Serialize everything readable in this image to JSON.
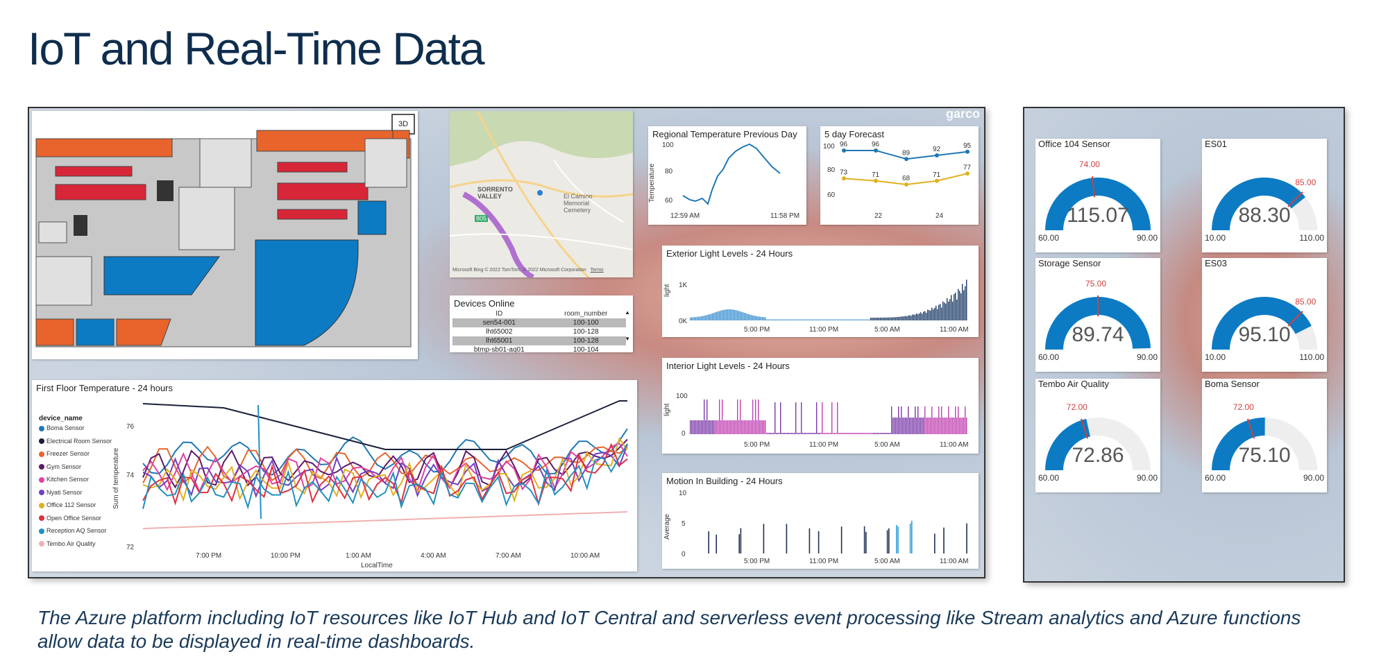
{
  "slide": {
    "title": "IoT and Real-Time Data",
    "caption": "The Azure platform including IoT resources like IoT Hub and IoT Central and serverless event processing like Stream analytics and Azure functions allow data to be displayed in real-time dashboards."
  },
  "dashboard": {
    "watermark": "garco",
    "floor_plan": {
      "button_3d": "3D"
    },
    "map": {
      "labels": [
        "SORRENTO VALLEY",
        "El Camino Memorial Cemetery",
        "805"
      ],
      "attribution": "Microsoft Bing  © 2022 TomTom, © 2022 Microsoft Corporation",
      "terms": "Terms"
    },
    "devices_online": {
      "title": "Devices Online",
      "columns": [
        "ID",
        "room_number"
      ],
      "rows": [
        {
          "id": "sen54-001",
          "room": "100-100"
        },
        {
          "id": "lht65002",
          "room": "100-128"
        },
        {
          "id": "lht65001",
          "room": "100-128"
        },
        {
          "id": "btmp-sb01-aq01",
          "room": "100-104"
        }
      ]
    },
    "regional_temp": {
      "title": "Regional Temperature Previous Day",
      "ylabel": "Temperature",
      "yticks": [
        "100",
        "80",
        "60"
      ],
      "xticks": [
        "12:59 AM",
        "11:58 PM"
      ]
    },
    "forecast": {
      "title": "5 day Forecast",
      "yticks": [
        "100",
        "80",
        "60"
      ],
      "xticks": [
        "22",
        "24"
      ],
      "high": [
        96,
        96,
        89,
        92,
        95
      ],
      "low": [
        73,
        71,
        68,
        71,
        77
      ]
    },
    "exterior_light": {
      "title": "Exterior Light Levels - 24 Hours",
      "ylabel": "light",
      "yticks": [
        "1K",
        "0K"
      ],
      "xticks": [
        "5:00 PM",
        "11:00 PM",
        "5:00 AM",
        "11:00 AM"
      ]
    },
    "interior_light": {
      "title": "Interior Light Levels - 24 Hours",
      "ylabel": "light",
      "yticks": [
        "100",
        "0"
      ],
      "xticks": [
        "5:00 PM",
        "11:00 PM",
        "5:00 AM",
        "11:00 AM"
      ]
    },
    "motion": {
      "title": "Motion In Building - 24 Hours",
      "ylabel": "Average",
      "yticks": [
        "10",
        "5",
        "0"
      ],
      "xticks": [
        "5:00 PM",
        "11:00 PM",
        "5:00 AM",
        "11:00 AM"
      ]
    },
    "first_floor": {
      "title": "First Floor Temperature - 24 hours",
      "legend_title": "device_name",
      "ylabel": "Sum of temperature",
      "xlabel": "LocalTime",
      "yticks": [
        "76",
        "74",
        "72"
      ],
      "xticks": [
        "7:00 PM",
        "10:00 PM",
        "1:00 AM",
        "4:00 AM",
        "7:00 AM",
        "10:00 AM"
      ],
      "series": [
        {
          "name": "Boma Sensor",
          "color": "#1f77b4"
        },
        {
          "name": "Electrical Room Sensor",
          "color": "#1a1f3a"
        },
        {
          "name": "Freezer Sensor",
          "color": "#e8642c"
        },
        {
          "name": "Gym Sensor",
          "color": "#5a1a6a"
        },
        {
          "name": "Kitchen Sensor",
          "color": "#e040a0"
        },
        {
          "name": "Nyati Sensor",
          "color": "#7040c0"
        },
        {
          "name": "Office 112 Sensor",
          "color": "#e0b020"
        },
        {
          "name": "Open Office Sensor",
          "color": "#e03040"
        },
        {
          "name": "Reception AQ Sensor",
          "color": "#2090c0"
        },
        {
          "name": "Tembo Air Quality",
          "color": "#f0b0b0"
        }
      ]
    }
  },
  "gauges": [
    {
      "title": "Office 104 Sensor",
      "value": "115.07",
      "min": "60.00",
      "max": "90.00",
      "target": "74.00",
      "fill": 1.0,
      "target_frac": 0.467
    },
    {
      "title": "ES01",
      "value": "88.30",
      "min": "10.00",
      "max": "110.00",
      "target": "85.00",
      "fill": 0.783,
      "target_frac": 0.75
    },
    {
      "title": "Storage Sensor",
      "value": "89.74",
      "min": "60.00",
      "max": "90.00",
      "target": "75.00",
      "fill": 0.991,
      "target_frac": 0.5
    },
    {
      "title": "ES03",
      "value": "95.10",
      "min": "10.00",
      "max": "110.00",
      "target": "85.00",
      "fill": 0.851,
      "target_frac": 0.75
    },
    {
      "title": "Tembo Air Quality",
      "value": "72.86",
      "min": "60.00",
      "max": "90.00",
      "target": "72.00",
      "fill": 0.429,
      "target_frac": 0.4
    },
    {
      "title": "Boma Sensor",
      "value": "75.10",
      "min": "60.00",
      "max": "90.00",
      "target": "72.00",
      "fill": 0.503,
      "target_frac": 0.4
    }
  ]
}
